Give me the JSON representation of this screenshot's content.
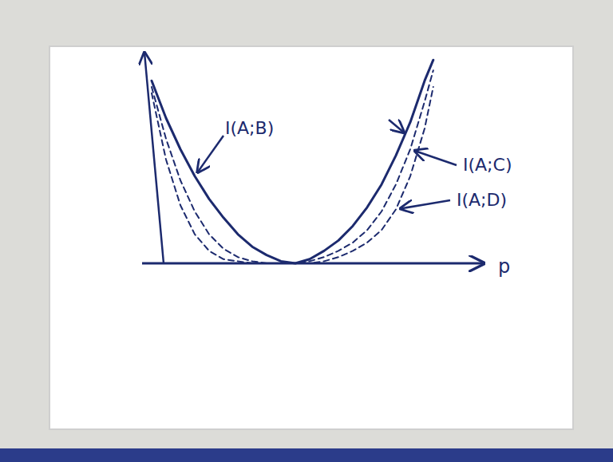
{
  "chart_data": {
    "type": "line",
    "x_label": "p",
    "x": [
      0,
      0.05,
      0.1,
      0.15,
      0.2,
      0.25,
      0.3,
      0.35,
      0.4,
      0.45,
      0.5,
      0.55,
      0.6,
      0.65,
      0.7,
      0.75,
      0.8,
      0.85,
      0.9,
      0.95,
      0.98
    ],
    "xlim": [
      0,
      1
    ],
    "ylim": [
      0,
      1
    ],
    "tick_labels": false,
    "grid": false,
    "color": "#1c2a6e",
    "series": [
      {
        "name": "I(A;B)",
        "line_style": "solid",
        "color": "#1c2a6e",
        "values": [
          0.88,
          0.7,
          0.55,
          0.42,
          0.31,
          0.22,
          0.14,
          0.08,
          0.04,
          0.01,
          0,
          0.02,
          0.06,
          0.11,
          0.18,
          0.27,
          0.38,
          0.52,
          0.68,
          0.88,
          0.98
        ]
      },
      {
        "name": "I(A;C)",
        "line_style": "dashed",
        "color": "#1c2a6e",
        "values": [
          0.85,
          0.6,
          0.4,
          0.25,
          0.14,
          0.07,
          0.03,
          0.01,
          0,
          0,
          0,
          0.01,
          0.03,
          0.06,
          0.1,
          0.16,
          0.25,
          0.38,
          0.55,
          0.78,
          0.93
        ]
      },
      {
        "name": "I(A;D)",
        "line_style": "dashed",
        "color": "#1c2a6e",
        "values": [
          0.82,
          0.5,
          0.28,
          0.14,
          0.06,
          0.02,
          0.01,
          0,
          0,
          0,
          0,
          0,
          0.01,
          0.03,
          0.06,
          0.1,
          0.16,
          0.26,
          0.42,
          0.65,
          0.85
        ]
      }
    ]
  }
}
